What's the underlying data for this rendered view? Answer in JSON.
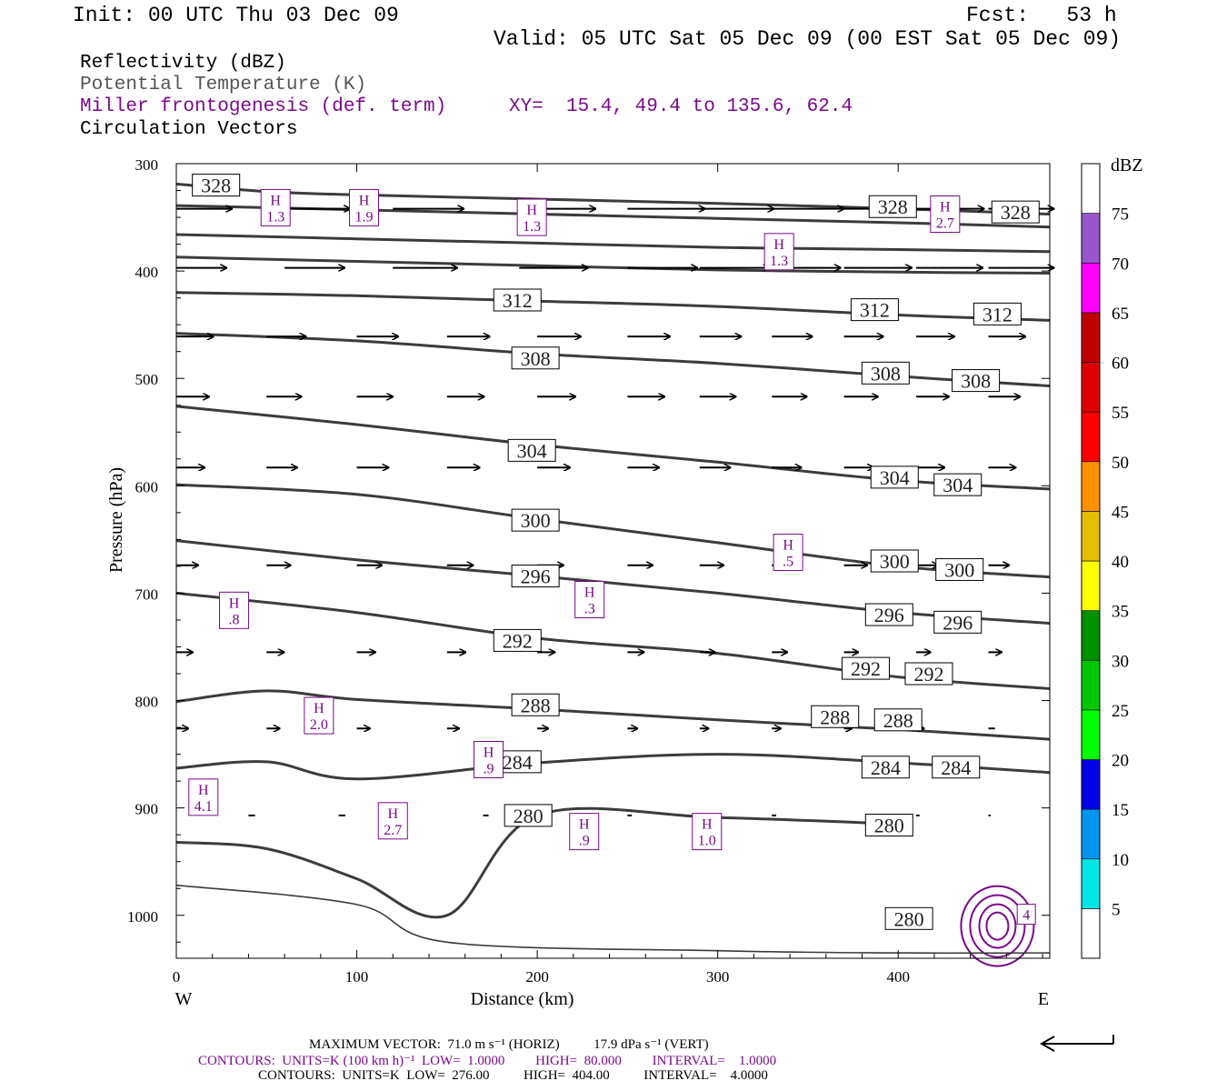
{
  "header": {
    "init": "Init: 00 UTC Thu 03 Dec 09",
    "fcst": "Fcst:   53 h",
    "valid": "Valid: 05 UTC Sat 05 Dec 09 (00 EST Sat 05 Dec 09)"
  },
  "legend": {
    "reflectivity": "Reflectivity (dBZ)",
    "theta": "Potential Temperature (K)",
    "frontogenesis": "Miller frontogenesis (def. term)",
    "xy": "XY=  15.4, 49.4 to 135.6, 62.4",
    "vectors": "Circulation Vectors"
  },
  "colors": {
    "theta": "#3c3c3c",
    "frontogenesis": "#7a0a8a",
    "theta_label_text": "#1e1e1e"
  },
  "footer": {
    "max_vector": "MAXIMUM VECTOR:  71.0 m s⁻¹ (HORIZ)          17.9 dPa s⁻¹ (VERT)",
    "contours1": "CONTOURS:  UNITS=K (100 km h)⁻¹  LOW=  1.0000         HIGH=  80.000         INTERVAL=    1.0000",
    "contours2": "CONTOURS:  UNITS=K  LOW=  276.00          HIGH=  404.00          INTERVAL=    4.0000"
  },
  "chart_data": {
    "type": "line",
    "xlabel": "Distance (km)",
    "ylabel": "Pressure (hPa)",
    "xlim": [
      0,
      484
    ],
    "ylim": [
      300,
      1040
    ],
    "x_ticks": [
      0,
      100,
      200,
      300,
      400
    ],
    "y_ticks": [
      300,
      400,
      500,
      600,
      700,
      800,
      900,
      1000
    ],
    "x_end_labels": {
      "left": "W",
      "right": "E"
    },
    "isentropes": [
      {
        "theta": 328,
        "x": [
          0,
          50,
          100,
          200,
          300,
          400,
          484
        ],
        "p": [
          319,
          326,
          329,
          333,
          337,
          342,
          347
        ],
        "labels": [
          {
            "x": 22,
            "p": 320
          },
          {
            "x": 397,
            "p": 340
          },
          {
            "x": 465,
            "p": 345
          }
        ]
      },
      {
        "theta": 324,
        "x": [
          0,
          100,
          200,
          300,
          400,
          484
        ],
        "p": [
          339,
          343,
          347,
          351,
          355,
          359
        ],
        "labels": []
      },
      {
        "theta": 320,
        "x": [
          0,
          100,
          200,
          300,
          400,
          484
        ],
        "p": [
          366,
          370,
          374,
          378,
          380,
          382
        ],
        "labels": []
      },
      {
        "theta": 316,
        "x": [
          0,
          100,
          200,
          300,
          400,
          484
        ],
        "p": [
          387,
          391,
          395,
          399,
          401,
          402
        ],
        "labels": []
      },
      {
        "theta": 312,
        "x": [
          0,
          100,
          200,
          300,
          400,
          484
        ],
        "p": [
          420,
          423,
          428,
          433,
          441,
          446
        ],
        "labels": [
          {
            "x": 189,
            "p": 427
          },
          {
            "x": 387,
            "p": 436
          },
          {
            "x": 455,
            "p": 440
          }
        ]
      },
      {
        "theta": 308,
        "x": [
          0,
          100,
          200,
          300,
          400,
          484
        ],
        "p": [
          458,
          465,
          477,
          486,
          498,
          507
        ],
        "labels": [
          {
            "x": 199,
            "p": 481
          },
          {
            "x": 393,
            "p": 495
          },
          {
            "x": 443,
            "p": 502
          }
        ]
      },
      {
        "theta": 304,
        "x": [
          0,
          100,
          200,
          300,
          400,
          484
        ],
        "p": [
          526,
          543,
          562,
          578,
          595,
          603
        ],
        "labels": [
          {
            "x": 197,
            "p": 567
          },
          {
            "x": 398,
            "p": 592
          },
          {
            "x": 433,
            "p": 599
          }
        ]
      },
      {
        "theta": 300,
        "x": [
          0,
          100,
          200,
          300,
          400,
          484
        ],
        "p": [
          599,
          608,
          631,
          653,
          675,
          685
        ],
        "labels": [
          {
            "x": 199,
            "p": 632
          },
          {
            "x": 398,
            "p": 670
          },
          {
            "x": 434,
            "p": 678
          }
        ]
      },
      {
        "theta": 296,
        "x": [
          0,
          100,
          200,
          300,
          400,
          484
        ],
        "p": [
          651,
          669,
          684,
          700,
          718,
          728
        ],
        "labels": [
          {
            "x": 199,
            "p": 684
          },
          {
            "x": 395,
            "p": 720
          },
          {
            "x": 433,
            "p": 727
          }
        ]
      },
      {
        "theta": 292,
        "x": [
          0,
          100,
          200,
          300,
          400,
          484
        ],
        "p": [
          700,
          718,
          742,
          756,
          778,
          789
        ],
        "labels": [
          {
            "x": 189,
            "p": 744
          },
          {
            "x": 382,
            "p": 770
          },
          {
            "x": 417,
            "p": 775
          }
        ]
      },
      {
        "theta": 288,
        "x": [
          0,
          50,
          100,
          200,
          300,
          400,
          484
        ],
        "p": [
          801,
          791,
          799,
          808,
          818,
          827,
          836
        ],
        "labels": [
          {
            "x": 199,
            "p": 804
          },
          {
            "x": 365,
            "p": 815
          },
          {
            "x": 400,
            "p": 818
          }
        ]
      },
      {
        "theta": 284,
        "x": [
          0,
          50,
          100,
          200,
          300,
          400,
          484
        ],
        "p": [
          863,
          857,
          873,
          858,
          850,
          858,
          867
        ],
        "labels": [
          {
            "x": 189,
            "p": 857
          },
          {
            "x": 393,
            "p": 862
          },
          {
            "x": 432,
            "p": 862
          }
        ]
      },
      {
        "theta": 280,
        "x": [
          0,
          50,
          100,
          150,
          200,
          300,
          400
        ],
        "p": [
          932,
          938,
          966,
          1000,
          907,
          909,
          915
        ],
        "labels": [
          {
            "x": 195,
            "p": 907
          },
          {
            "x": 395,
            "p": 916
          }
        ]
      },
      {
        "theta": 276,
        "x": [
          0,
          100,
          150,
          300,
          400,
          484
        ],
        "p": [
          972,
          990,
          1025,
          1033,
          1035,
          1035
        ],
        "labels": []
      }
    ],
    "theta_label_extra": [
      {
        "text": "280",
        "x": 406,
        "p": 1003
      }
    ],
    "frontogenesis_maxima": [
      {
        "label": "H",
        "value": "1.3",
        "x": 55,
        "p": 341
      },
      {
        "label": "H",
        "value": "1.9",
        "x": 104,
        "p": 341
      },
      {
        "label": "H",
        "value": "1.3",
        "x": 197,
        "p": 350
      },
      {
        "label": "H",
        "value": "1.3",
        "x": 334,
        "p": 382
      },
      {
        "label": "H",
        "value": "2.7",
        "x": 426,
        "p": 347
      },
      {
        "label": "H",
        "value": ".5",
        "x": 339,
        "p": 662
      },
      {
        "label": "H",
        "value": ".3",
        "x": 229,
        "p": 706
      },
      {
        "label": "H",
        "value": ".8",
        "x": 32,
        "p": 716
      },
      {
        "label": "H",
        "value": "2.0",
        "x": 79,
        "p": 814
      },
      {
        "label": "H",
        "value": ".9",
        "x": 173,
        "p": 855
      },
      {
        "label": "H",
        "value": "4.1",
        "x": 15,
        "p": 890
      },
      {
        "label": "H",
        "value": "2.7",
        "x": 120,
        "p": 912
      },
      {
        "label": "H",
        "value": ".9",
        "x": 226,
        "p": 922
      },
      {
        "label": "H",
        "value": "1.0",
        "x": 294,
        "p": 922
      }
    ],
    "frontogenesis_extra_label": {
      "text": "4",
      "x": 471,
      "p": 999
    },
    "vectors": {
      "units_note": "u in m/s, w in dPa/s",
      "rows": [
        {
          "p": 342,
          "x": [
            0,
            60,
            120,
            190,
            250,
            290,
            330,
            370,
            410,
            450
          ],
          "u": [
            51,
            60,
            65,
            70,
            71,
            68,
            66,
            64,
            62,
            60
          ],
          "w": [
            0,
            0,
            0,
            0,
            0,
            0,
            0,
            0,
            0,
            0
          ]
        },
        {
          "p": 397,
          "x": [
            0,
            60,
            120,
            190,
            250,
            290,
            330,
            370,
            410,
            450
          ],
          "u": [
            46,
            55,
            59,
            63,
            64,
            64,
            63,
            62,
            61,
            60
          ],
          "w": [
            0,
            0,
            0,
            0,
            0,
            0,
            0,
            0,
            0,
            0
          ]
        },
        {
          "p": 461,
          "x": [
            0,
            50,
            100,
            150,
            200,
            250,
            290,
            330,
            370,
            410,
            450
          ],
          "u": [
            34,
            36,
            38,
            39,
            40,
            39,
            38,
            37,
            36,
            35,
            34
          ],
          "w": [
            0,
            0,
            0,
            0,
            0,
            0,
            0,
            0,
            0,
            0,
            0
          ]
        },
        {
          "p": 517,
          "x": [
            0,
            50,
            100,
            150,
            200,
            250,
            290,
            330,
            370,
            410,
            450
          ],
          "u": [
            30,
            32,
            33,
            34,
            35,
            34,
            33,
            32,
            31,
            30,
            29
          ],
          "w": [
            0,
            0,
            0,
            0,
            0,
            0,
            0,
            0,
            0,
            0,
            0
          ]
        },
        {
          "p": 583,
          "x": [
            0,
            50,
            100,
            150,
            200,
            250,
            290,
            330,
            370,
            410,
            450
          ],
          "u": [
            26,
            28,
            29,
            30,
            30,
            29,
            28,
            27,
            27,
            26,
            25
          ],
          "w": [
            0,
            0,
            0,
            0,
            0,
            0,
            0,
            0,
            0,
            0,
            0
          ]
        },
        {
          "p": 674,
          "x": [
            0,
            50,
            100,
            150,
            200,
            250,
            290,
            330,
            370,
            410,
            450
          ],
          "u": [
            20,
            22,
            23,
            24,
            24,
            23,
            22,
            21,
            21,
            20,
            19
          ],
          "w": [
            0,
            0,
            0,
            0,
            0,
            0,
            0,
            0,
            0,
            0,
            0
          ]
        },
        {
          "p": 755,
          "x": [
            0,
            50,
            100,
            150,
            200,
            250,
            290,
            330,
            370,
            410,
            450
          ],
          "u": [
            15,
            16,
            17,
            17,
            16,
            15,
            14,
            14,
            13,
            13,
            12
          ],
          "w": [
            0,
            0,
            0,
            0,
            0,
            0,
            0,
            0,
            0,
            0,
            0
          ]
        },
        {
          "p": 826,
          "x": [
            0,
            50,
            100,
            150,
            200,
            250,
            290,
            330,
            370,
            410,
            450
          ],
          "u": [
            11,
            12,
            12,
            11,
            10,
            9,
            8,
            8,
            7,
            7,
            6
          ],
          "w": [
            0,
            0,
            0,
            0,
            0,
            0,
            0,
            0,
            0,
            0,
            0
          ]
        },
        {
          "p": 907,
          "x": [
            40,
            90,
            170,
            250,
            330,
            410,
            450
          ],
          "u": [
            6,
            6,
            5,
            4,
            4,
            3,
            2
          ],
          "w": [
            0,
            0,
            0,
            0,
            0,
            0,
            0
          ]
        }
      ]
    },
    "colorbar": {
      "unit": "dBZ",
      "levels": [
        5,
        10,
        15,
        20,
        25,
        30,
        35,
        40,
        45,
        50,
        55,
        60,
        65,
        70,
        75
      ],
      "colors": [
        "#ffffff",
        "#00e6e6",
        "#0096f0",
        "#0000e6",
        "#00ff00",
        "#00c800",
        "#009100",
        "#ffff00",
        "#e6be00",
        "#ff9100",
        "#ff0000",
        "#dc0000",
        "#c00000",
        "#ff00ff",
        "#9955cc",
        "#ffffff"
      ]
    }
  }
}
